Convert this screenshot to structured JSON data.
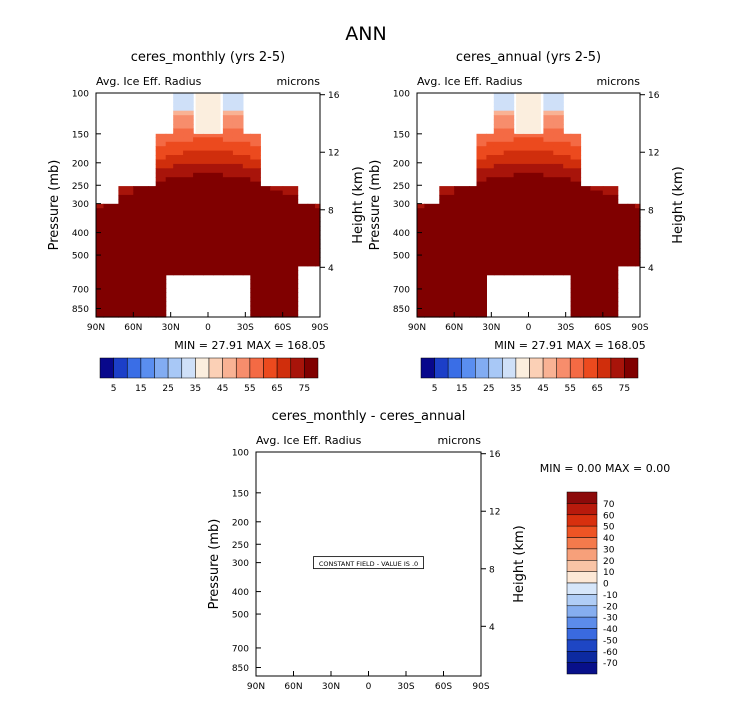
{
  "page_title": "ANN",
  "chart_data": [
    {
      "type": "heatmap",
      "title": "ceres_monthly (yrs 2-5)",
      "subtitle_left": "Avg. Ice Eff. Radius",
      "subtitle_right": "microns",
      "xlabel": "",
      "ylabel": "Pressure (mb)",
      "ylabel_right": "Height (km)",
      "x_ticks": [
        "90N",
        "60N",
        "30N",
        "0",
        "30S",
        "60S",
        "90S"
      ],
      "x_values": [
        90,
        60,
        30,
        0,
        -30,
        -60,
        -90
      ],
      "y_ticks": [
        "100",
        "150",
        "200",
        "250",
        "300",
        "400",
        "500",
        "700",
        "850"
      ],
      "y_values": [
        100,
        150,
        200,
        250,
        300,
        400,
        500,
        700,
        850
      ],
      "ylim": [
        100,
        925
      ],
      "y_scale": "log",
      "right_ticks": [
        "16",
        "12",
        "8",
        "4"
      ],
      "right_values": [
        16,
        12,
        8,
        4
      ],
      "min_label": "MIN =",
      "min_value": "27.91",
      "max_label": "MAX =",
      "max_value": "168.05",
      "colorbar": {
        "labels": [
          "5",
          "15",
          "25",
          "35",
          "45",
          "55",
          "65",
          "75"
        ],
        "colors": [
          "#08088c",
          "#1c3fc8",
          "#3a6ee6",
          "#5a8ef0",
          "#82acf2",
          "#a8c8f6",
          "#cfe0f8",
          "#fbeede",
          "#fbd0b6",
          "#f9b294",
          "#f78d6c",
          "#f46a44",
          "#ec4a1e",
          "#d02e0c",
          "#a8140a",
          "#800000"
        ]
      }
    },
    {
      "type": "heatmap",
      "title": "ceres_annual (yrs 2-5)",
      "subtitle_left": "Avg. Ice Eff. Radius",
      "subtitle_right": "microns",
      "xlabel": "",
      "ylabel": "Pressure (mb)",
      "ylabel_right": "Height (km)",
      "x_ticks": [
        "90N",
        "60N",
        "30N",
        "0",
        "30S",
        "60S",
        "90S"
      ],
      "x_values": [
        90,
        60,
        30,
        0,
        -30,
        -60,
        -90
      ],
      "y_ticks": [
        "100",
        "150",
        "200",
        "250",
        "300",
        "400",
        "500",
        "700",
        "850"
      ],
      "y_values": [
        100,
        150,
        200,
        250,
        300,
        400,
        500,
        700,
        850
      ],
      "ylim": [
        100,
        925
      ],
      "y_scale": "log",
      "right_ticks": [
        "16",
        "12",
        "8",
        "4"
      ],
      "right_values": [
        16,
        12,
        8,
        4
      ],
      "min_label": "MIN =",
      "min_value": "27.91",
      "max_label": "MAX =",
      "max_value": "168.05",
      "colorbar": {
        "labels": [
          "5",
          "15",
          "25",
          "35",
          "45",
          "55",
          "65",
          "75"
        ],
        "colors": [
          "#08088c",
          "#1c3fc8",
          "#3a6ee6",
          "#5a8ef0",
          "#82acf2",
          "#a8c8f6",
          "#cfe0f8",
          "#fbeede",
          "#fbd0b6",
          "#f9b294",
          "#f78d6c",
          "#f46a44",
          "#ec4a1e",
          "#d02e0c",
          "#a8140a",
          "#800000"
        ]
      }
    },
    {
      "type": "heatmap",
      "title": "ceres_monthly - ceres_annual",
      "subtitle_left": "Avg. Ice Eff. Radius",
      "subtitle_right": "microns",
      "xlabel": "",
      "ylabel": "Pressure (mb)",
      "ylabel_right": "Height (km)",
      "x_ticks": [
        "90N",
        "60N",
        "30N",
        "0",
        "30S",
        "60S",
        "90S"
      ],
      "x_values": [
        90,
        60,
        30,
        0,
        -30,
        -60,
        -90
      ],
      "y_ticks": [
        "100",
        "150",
        "200",
        "250",
        "300",
        "400",
        "500",
        "700",
        "850"
      ],
      "y_values": [
        100,
        150,
        200,
        250,
        300,
        400,
        500,
        700,
        850
      ],
      "ylim": [
        100,
        925
      ],
      "y_scale": "log",
      "right_ticks": [
        "16",
        "12",
        "8",
        "4"
      ],
      "right_values": [
        16,
        12,
        8,
        4
      ],
      "min_label": "MIN =",
      "min_value": "0.00",
      "max_label": "MAX =",
      "max_value": "0.00",
      "annotation": "CONSTANT FIELD - VALUE IS .0",
      "colorbar": {
        "labels": [
          "70",
          "60",
          "50",
          "40",
          "30",
          "20",
          "10",
          "0",
          "-10",
          "-20",
          "-30",
          "-40",
          "-50",
          "-60",
          "-70"
        ],
        "colors": [
          "#8c0a0a",
          "#b81a0c",
          "#d8300e",
          "#ee5424",
          "#f47a4c",
          "#f7a07a",
          "#f9c4a6",
          "#fde8d6",
          "#d6e6fa",
          "#b0cdf6",
          "#86aef0",
          "#5c8cea",
          "#3a6ae0",
          "#1e46c4",
          "#0c2aa0",
          "#08108a"
        ]
      }
    }
  ]
}
